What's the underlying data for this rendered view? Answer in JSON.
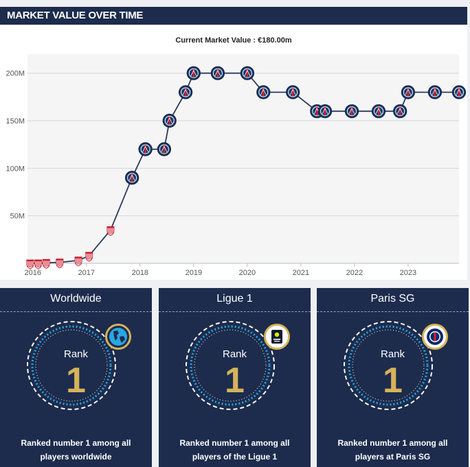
{
  "header": {
    "title": "MARKET VALUE OVER TIME"
  },
  "chart_data": {
    "type": "line",
    "subtitle": "Current Market Value : €180.00m",
    "x_ticks": [
      "2016",
      "2017",
      "2018",
      "2019",
      "2020",
      "2021",
      "2022",
      "2023"
    ],
    "y_ticks": [
      "200M",
      "150M",
      "100M",
      "50M"
    ],
    "xlim": [
      2015.9,
      2023.95
    ],
    "ylim": [
      0,
      220
    ],
    "grid": true,
    "series": [
      {
        "points": [
          {
            "x": 2015.95,
            "y": 0,
            "club": "Monaco"
          },
          {
            "x": 2016.1,
            "y": 0,
            "club": "Monaco"
          },
          {
            "x": 2016.25,
            "y": 0.5,
            "club": "Monaco"
          },
          {
            "x": 2016.5,
            "y": 1,
            "club": "Monaco"
          },
          {
            "x": 2016.85,
            "y": 3,
            "club": "Monaco"
          },
          {
            "x": 2017.05,
            "y": 8,
            "club": "Monaco"
          },
          {
            "x": 2017.45,
            "y": 35,
            "club": "Monaco"
          },
          {
            "x": 2017.85,
            "y": 90,
            "club": "Paris SG"
          },
          {
            "x": 2018.1,
            "y": 120,
            "club": "Paris SG"
          },
          {
            "x": 2018.45,
            "y": 120,
            "club": "Paris SG"
          },
          {
            "x": 2018.55,
            "y": 150,
            "club": "Paris SG"
          },
          {
            "x": 2018.85,
            "y": 180,
            "club": "Paris SG"
          },
          {
            "x": 2019.0,
            "y": 200,
            "club": "Paris SG"
          },
          {
            "x": 2019.45,
            "y": 200,
            "club": "Paris SG"
          },
          {
            "x": 2020.0,
            "y": 200,
            "club": "Paris SG"
          },
          {
            "x": 2020.3,
            "y": 180,
            "club": "Paris SG"
          },
          {
            "x": 2020.85,
            "y": 180,
            "club": "Paris SG"
          },
          {
            "x": 2021.3,
            "y": 160,
            "club": "Paris SG"
          },
          {
            "x": 2021.45,
            "y": 160,
            "club": "Paris SG"
          },
          {
            "x": 2021.95,
            "y": 160,
            "club": "Paris SG"
          },
          {
            "x": 2022.45,
            "y": 160,
            "club": "Paris SG"
          },
          {
            "x": 2022.85,
            "y": 160,
            "club": "Paris SG"
          },
          {
            "x": 2023.0,
            "y": 180,
            "club": "Paris SG"
          },
          {
            "x": 2023.5,
            "y": 180,
            "club": "Paris SG"
          },
          {
            "x": 2023.95,
            "y": 180,
            "club": "Paris SG"
          }
        ]
      }
    ]
  },
  "colors": {
    "navy": "#1d2c4d",
    "gold": "#d6b35a",
    "line": "#2b3a5a",
    "grid": "#d4d7dc",
    "ring": "#29a6e3"
  },
  "rank_cards": [
    {
      "title": "Worldwide",
      "rank_label": "Rank",
      "rank": "1",
      "description": "Ranked number 1 among all players worldwide",
      "icon": "globe-icon"
    },
    {
      "title": "Ligue 1",
      "rank_label": "Rank",
      "rank": "1",
      "description": "Ranked number 1 among all players of the Ligue 1",
      "icon": "ligue1-logo-icon"
    },
    {
      "title": "Paris SG",
      "rank_label": "Rank",
      "rank": "1",
      "description": "Ranked number 1 among all players at Paris SG",
      "icon": "psg-crest-icon"
    }
  ]
}
